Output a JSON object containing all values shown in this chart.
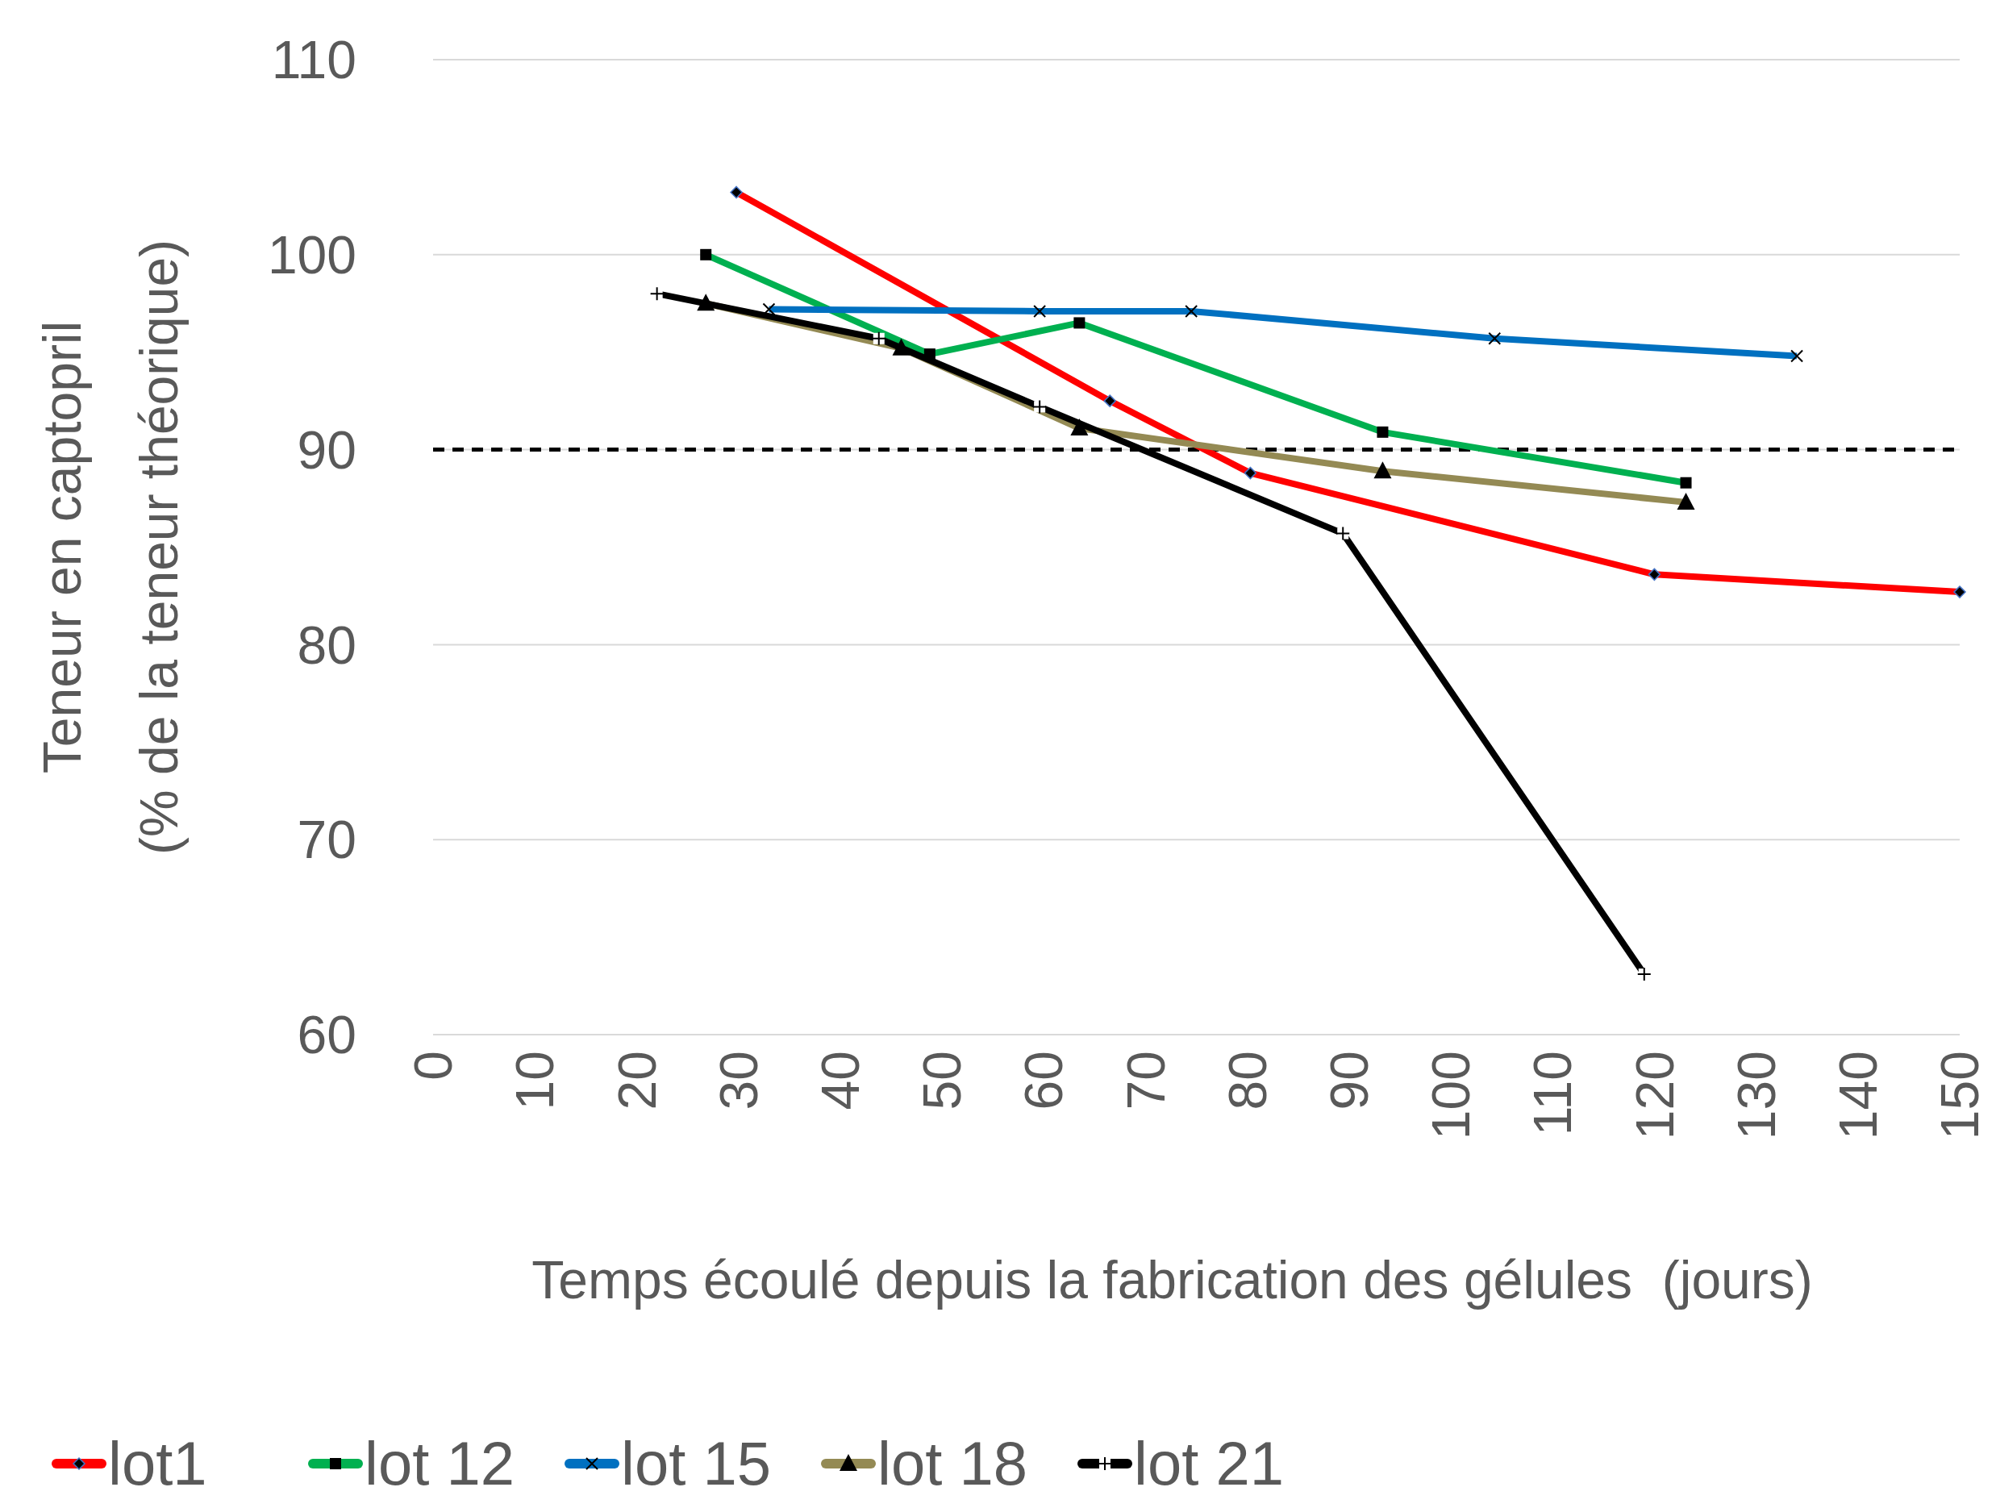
{
  "chart_data": {
    "type": "line",
    "xlabel": "Temps écoulé depuis la fabrication des gélules  (jours)",
    "ylabel": "Teneur en captopril\n(% de la teneur théorique)",
    "xlim": [
      0,
      150
    ],
    "xticks": [
      0,
      10,
      20,
      30,
      40,
      50,
      60,
      70,
      80,
      90,
      100,
      110,
      120,
      130,
      140,
      150
    ],
    "ylim": [
      60,
      110
    ],
    "yticks": [
      60,
      70,
      80,
      90,
      100,
      110
    ],
    "grid": "y",
    "legend": "bottom",
    "line_style": "solid",
    "ref_lines": [
      {
        "axis": "y",
        "value": 90,
        "color": "#000000",
        "line_style": "dashed"
      }
    ],
    "series": [
      {
        "name": "lot1",
        "color": "#ff0000",
        "marker": "diamond",
        "x": [
          29.8,
          66.5,
          80.3,
          120,
          150
        ],
        "values": [
          103.2,
          92.5,
          88.8,
          83.6,
          82.7
        ]
      },
      {
        "name": "lot 12",
        "color": "#00b050",
        "marker": "square",
        "x": [
          26.8,
          48.8,
          63.5,
          93.3,
          123.1
        ],
        "values": [
          100,
          94.9,
          96.5,
          90.9,
          88.3
        ]
      },
      {
        "name": "lot 15",
        "color": "#0070c0",
        "marker": "cross",
        "x": [
          33,
          59.6,
          74.5,
          104.3,
          134
        ],
        "values": [
          97.2,
          97.1,
          97.1,
          95.7,
          94.8
        ]
      },
      {
        "name": "lot 18",
        "color": "#948a54",
        "marker": "triangle",
        "x": [
          26.8,
          46,
          63.5,
          93.3,
          123.1
        ],
        "values": [
          97.5,
          95.2,
          91.1,
          88.9,
          87.3
        ]
      },
      {
        "name": "lot 21",
        "color": "#000000",
        "marker": "plus",
        "x": [
          22,
          43.8,
          59.6,
          89.4,
          119
        ],
        "values": [
          98,
          95.7,
          92.2,
          85.7,
          63.1
        ]
      }
    ]
  }
}
